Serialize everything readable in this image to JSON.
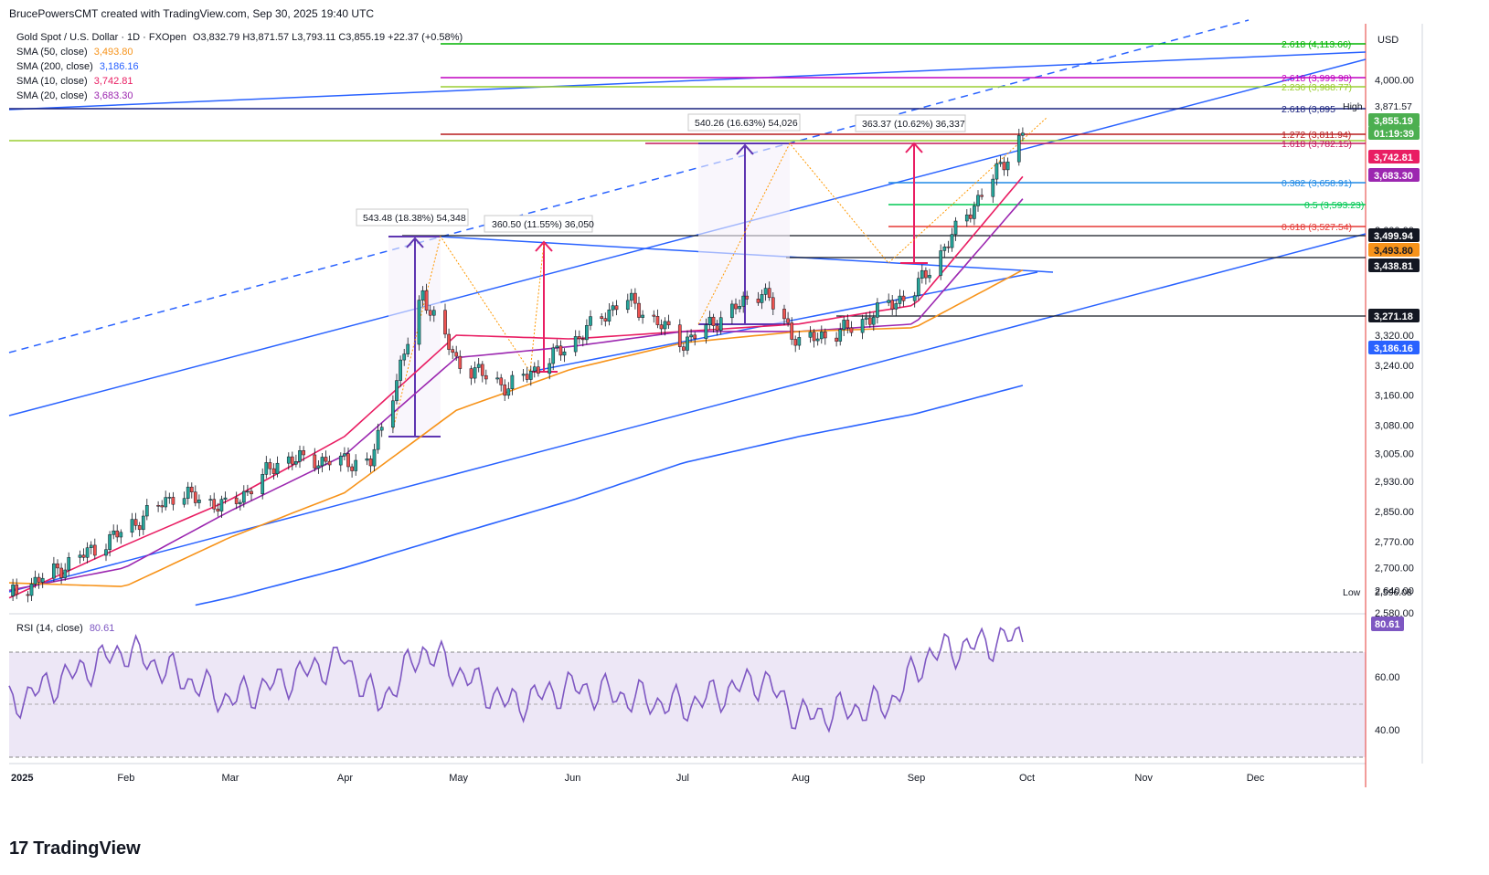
{
  "header": {
    "byline": "BrucePowersCMT created with TradingView.com, Sep 30, 2025 19:40 UTC"
  },
  "symbol": {
    "name": "Gold Spot / U.S. Dollar · 1D · FXOpen",
    "ohlc": "O3,832.79  H3,871.57  L3,793.11  C3,855.19  +22.37 (+0.58%)"
  },
  "indicators": [
    {
      "label": "SMA (50, close)",
      "value": "3,493.80",
      "color": "#f7931a"
    },
    {
      "label": "SMA (200, close)",
      "value": "3,186.16",
      "color": "#2962ff"
    },
    {
      "label": "SMA (10, close)",
      "value": "3,742.81",
      "color": "#e91e63"
    },
    {
      "label": "SMA (20, close)",
      "value": "3,683.30",
      "color": "#9c27b0"
    }
  ],
  "rsi": {
    "label": "RSI (14, close)",
    "value": "80.61",
    "color": "#7e57c2",
    "badge": "80.61",
    "axis_ticks": [
      "60.00",
      "40.00"
    ]
  },
  "price_axis": {
    "currency": "USD",
    "ticks": [
      "4,000.00",
      "3,600.00",
      "3,320.00",
      "3,240.00",
      "3,160.00",
      "3,080.00",
      "3,005.00",
      "2,930.00",
      "2,850.00",
      "2,770.00",
      "2,700.00",
      "2,640.00",
      "2,580.00"
    ],
    "high_label": "High",
    "high_value": "3,871.57",
    "low_label": "Low",
    "low_value": "2,596.08",
    "badges": [
      {
        "text": "3,855.19",
        "bg": "#4caf50",
        "fg": "#ffffff"
      },
      {
        "text": "01:19:39",
        "bg": "#4caf50",
        "fg": "#ffffff"
      },
      {
        "text": "3,742.81",
        "bg": "#e91e63",
        "fg": "#ffffff"
      },
      {
        "text": "3,683.30",
        "bg": "#9c27b0",
        "fg": "#ffffff"
      },
      {
        "text": "3,499.94",
        "bg": "#131722",
        "fg": "#ffffff"
      },
      {
        "text": "3,493.80",
        "bg": "#f7931a",
        "fg": "#131722"
      },
      {
        "text": "3,438.81",
        "bg": "#131722",
        "fg": "#ffffff"
      },
      {
        "text": "3,271.18",
        "bg": "#131722",
        "fg": "#ffffff"
      },
      {
        "text": "3,186.16",
        "bg": "#2962ff",
        "fg": "#ffffff"
      }
    ]
  },
  "time_axis": [
    "2025",
    "Feb",
    "Mar",
    "Apr",
    "May",
    "Jun",
    "Jul",
    "Aug",
    "Sep",
    "Oct",
    "Nov",
    "Dec"
  ],
  "fib_labels": [
    {
      "text": "2.618 (4,113.66)",
      "color": "#00b300"
    },
    {
      "text": "2.618 (3,999.98)",
      "color": "#c000c0"
    },
    {
      "text": "2.236 (3,988.77)",
      "color": "#9acd32"
    },
    {
      "text": "2.618 (3,895",
      "color": "#1a237e"
    },
    {
      "text": "1.272 (3,811.94)",
      "color": "#b71c1c"
    },
    {
      "text": "1.618 (3,782.15)",
      "color": "#c2185b"
    },
    {
      "text": "0.382 (3,658.91)",
      "color": "#1e88e5"
    },
    {
      "text": "0.5 (3,593.23)",
      "color": "#00c853"
    },
    {
      "text": "0.618 (3,527.54)",
      "color": "#e53935"
    }
  ],
  "measure_labels": [
    "543.48 (18.38%) 54,348",
    "360.50 (11.55%) 36,050",
    "540.26 (16.63%) 54,026",
    "363.37 (10.62%) 36,337"
  ],
  "footer": {
    "brand": "TradingView"
  },
  "chart_data": {
    "type": "line",
    "title": "Gold Spot / U.S. Dollar",
    "ylabel": "USD",
    "ylim": [
      2580,
      4150
    ],
    "series": [
      {
        "name": "Gold Spot / U.S. Dollar",
        "x": [
          "2025-01-01",
          "2025-01-15",
          "2025-02-01",
          "2025-02-15",
          "2025-03-01",
          "2025-03-15",
          "2025-04-08",
          "2025-04-22",
          "2025-05-01",
          "2025-05-15",
          "2025-06-01",
          "2025-06-15",
          "2025-07-01",
          "2025-07-22",
          "2025-08-01",
          "2025-08-15",
          "2025-09-01",
          "2025-09-15",
          "2025-09-30"
        ],
        "values": [
          2625,
          2700,
          2800,
          2900,
          2860,
          2990,
          2980,
          3430,
          3250,
          3180,
          3300,
          3420,
          3300,
          3440,
          3300,
          3340,
          3440,
          3640,
          3855
        ]
      },
      {
        "name": "SMA (10, close)",
        "x": [
          "2025-01-01",
          "2025-02-01",
          "2025-03-01",
          "2025-04-01",
          "2025-05-01",
          "2025-06-01",
          "2025-07-01",
          "2025-08-01",
          "2025-09-01",
          "2025-09-30"
        ],
        "values": [
          2620,
          2760,
          2880,
          3050,
          3320,
          3310,
          3330,
          3350,
          3400,
          3742.81
        ]
      },
      {
        "name": "SMA (20, close)",
        "x": [
          "2025-01-01",
          "2025-02-01",
          "2025-03-01",
          "2025-04-01",
          "2025-05-01",
          "2025-06-01",
          "2025-07-01",
          "2025-08-01",
          "2025-09-01",
          "2025-09-30"
        ],
        "values": [
          2640,
          2700,
          2850,
          3000,
          3260,
          3290,
          3330,
          3330,
          3350,
          3683.3
        ]
      },
      {
        "name": "SMA (50, close)",
        "x": [
          "2025-01-01",
          "2025-02-01",
          "2025-03-01",
          "2025-04-01",
          "2025-05-01",
          "2025-06-01",
          "2025-07-01",
          "2025-08-01",
          "2025-09-01",
          "2025-09-30"
        ],
        "values": [
          2660,
          2650,
          2780,
          2900,
          3120,
          3230,
          3300,
          3330,
          3340,
          3493.8
        ]
      },
      {
        "name": "SMA (200, close)",
        "x": [
          "2025-01-01",
          "2025-02-01",
          "2025-03-01",
          "2025-04-01",
          "2025-05-01",
          "2025-06-01",
          "2025-07-01",
          "2025-08-01",
          "2025-09-01",
          "2025-09-30"
        ],
        "values": [
          2520,
          2560,
          2620,
          2700,
          2790,
          2880,
          2980,
          3050,
          3110,
          3186.16
        ]
      },
      {
        "name": "RSI (14, close)",
        "x": [
          "2025-01-01",
          "2025-02-01",
          "2025-03-01",
          "2025-04-01",
          "2025-04-10",
          "2025-04-22",
          "2025-05-15",
          "2025-06-01",
          "2025-07-01",
          "2025-07-22",
          "2025-08-01",
          "2025-08-25",
          "2025-09-05",
          "2025-09-30"
        ],
        "values": [
          48,
          74,
          50,
          70,
          48,
          74,
          48,
          56,
          47,
          60,
          42,
          48,
          72,
          80.61
        ]
      }
    ]
  }
}
